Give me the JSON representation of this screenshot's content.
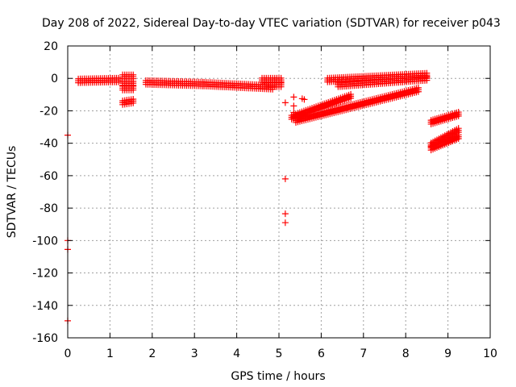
{
  "chart_data": {
    "type": "scatter",
    "title": "Day 208 of 2022, Sidereal Day-to-day VTEC variation (SDTVAR) for receiver p043",
    "xlabel": "GPS time / hours",
    "ylabel": "SDTVAR / TECUs",
    "xlim": [
      0,
      10
    ],
    "ylim": [
      -160,
      20
    ],
    "xticks": [
      0,
      1,
      2,
      3,
      4,
      5,
      6,
      7,
      8,
      9,
      10
    ],
    "yticks": [
      -160,
      -140,
      -120,
      -100,
      -80,
      -60,
      -40,
      -20,
      0,
      20
    ],
    "grid": true,
    "marker": "+",
    "color": "#ff0000",
    "segments": [
      {
        "x": [
          0.25,
          1.2
        ],
        "y": [
          -1.5,
          -1.0
        ]
      },
      {
        "x": [
          1.3,
          1.55
        ],
        "y": [
          1.0,
          1.0
        ]
      },
      {
        "x": [
          1.3,
          1.55
        ],
        "y": [
          -3.0,
          -3.0
        ]
      },
      {
        "x": [
          1.3,
          1.55
        ],
        "y": [
          -6.0,
          -6.0
        ]
      },
      {
        "x": [
          1.3,
          1.55
        ],
        "y": [
          -15.0,
          -14.0
        ]
      },
      {
        "x": [
          1.85,
          3.2
        ],
        "y": [
          -2.5,
          -3.5
        ]
      },
      {
        "x": [
          3.2,
          4.85
        ],
        "y": [
          -3.5,
          -5.5
        ]
      },
      {
        "x": [
          4.6,
          5.05
        ],
        "y": [
          -1.0,
          -1.0
        ]
      },
      {
        "x": [
          4.7,
          5.05
        ],
        "y": [
          -4.0,
          -4.0
        ]
      },
      {
        "x": [
          5.3,
          6.7
        ],
        "y": [
          -24.0,
          -11.0
        ]
      },
      {
        "x": [
          5.4,
          8.3
        ],
        "y": [
          -26.0,
          -7.0
        ]
      },
      {
        "x": [
          6.15,
          8.5
        ],
        "y": [
          -1.0,
          2.0
        ]
      },
      {
        "x": [
          6.4,
          8.5
        ],
        "y": [
          -4.0,
          0.0
        ]
      },
      {
        "x": [
          8.6,
          9.25
        ],
        "y": [
          -27.0,
          -22.0
        ]
      },
      {
        "x": [
          8.6,
          9.25
        ],
        "y": [
          -41.0,
          -32.0
        ]
      },
      {
        "x": [
          8.6,
          9.25
        ],
        "y": [
          -43.0,
          -36.0
        ]
      }
    ],
    "points": [
      {
        "x": 0.0,
        "y": -35.0
      },
      {
        "x": 0.0,
        "y": -100.0
      },
      {
        "x": 0.0,
        "y": -105.5
      },
      {
        "x": 0.0,
        "y": -149.5
      },
      {
        "x": 5.15,
        "y": -15.0
      },
      {
        "x": 5.15,
        "y": -62.0
      },
      {
        "x": 5.15,
        "y": -83.5
      },
      {
        "x": 5.15,
        "y": -89.0
      },
      {
        "x": 5.35,
        "y": -11.5
      },
      {
        "x": 5.35,
        "y": -17.0
      },
      {
        "x": 5.35,
        "y": -21.0
      },
      {
        "x": 5.55,
        "y": -12.5
      },
      {
        "x": 5.6,
        "y": -13.0
      }
    ]
  }
}
